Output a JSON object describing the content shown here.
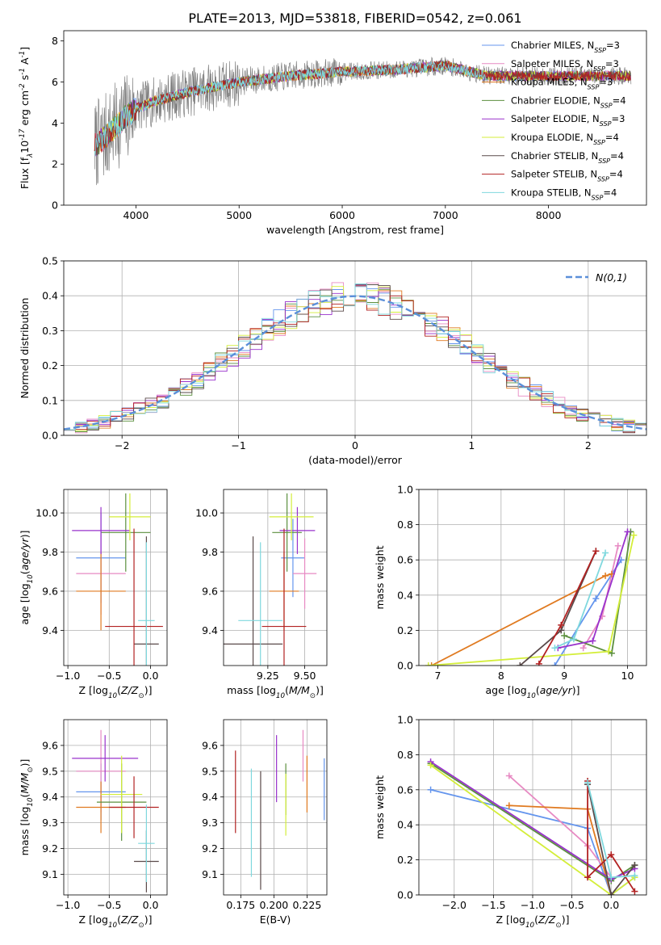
{
  "figure_title": "PLATE=2013, MJD=53818, FIBERID=0542, z=0.061",
  "chart_data": [
    {
      "type": "line",
      "panel": "spectrum",
      "xlabel": "wavelength [Angstrom, rest frame]",
      "ylabel": "Flux [f$_\\lambda$10$^{-17}$ erg cm$^{-2}$ s$^{-1}$ A$^{-1}$]",
      "xlim": [
        3300,
        8950
      ],
      "ylim": [
        0,
        8.5
      ],
      "xticks": [
        4000,
        5000,
        6000,
        7000,
        8000
      ],
      "yticks": [
        0,
        2,
        4,
        6,
        8
      ],
      "grid": false,
      "legend": "right",
      "data_color": "#808080",
      "continuum": {
        "x": [
          3600,
          3700,
          3800,
          3900,
          4000,
          4200,
          4500,
          5000,
          5500,
          6000,
          6500,
          7000,
          7400
        ],
        "y": [
          2.9,
          3.3,
          3.8,
          4.3,
          4.7,
          5.1,
          5.5,
          6.0,
          6.3,
          6.5,
          6.6,
          6.8,
          6.3
        ]
      },
      "series": [
        {
          "name": "Chabrier MILES, N$_{SSP}$=3",
          "color": "#6495ed"
        },
        {
          "name": "Salpeter MILES, N$_{SSP}$=3",
          "color": "#e78ac3"
        },
        {
          "name": "Kroupa MILES, N$_{SSP}$=3",
          "color": "#e07a20"
        },
        {
          "name": "Chabrier ELODIE, N$_{SSP}$=4",
          "color": "#5b8f3e"
        },
        {
          "name": "Salpeter ELODIE, N$_{SSP}$=3",
          "color": "#9932cc"
        },
        {
          "name": "Kroupa ELODIE, N$_{SSP}$=4",
          "color": "#d4ee3a"
        },
        {
          "name": "Chabrier STELIB, N$_{SSP}$=4",
          "color": "#5a4a4a"
        },
        {
          "name": "Salpeter STELIB, N$_{SSP}$=4",
          "color": "#b22222"
        },
        {
          "name": "Kroupa STELIB, N$_{SSP}$=4",
          "color": "#7fd8de"
        }
      ]
    },
    {
      "type": "line",
      "panel": "residuals",
      "xlabel": "(data-model)/error",
      "ylabel": "Normed distribution",
      "xlim": [
        -2.5,
        2.5
      ],
      "ylim": [
        0,
        0.5
      ],
      "xticks": [
        -2,
        -1,
        0,
        1,
        2
      ],
      "yticks": [
        0.0,
        0.1,
        0.2,
        0.3,
        0.4,
        0.5
      ],
      "grid": true,
      "legend": "top-right",
      "reference": {
        "name": "$\\mathcal{N}(0,1)$",
        "color": "#5b8fd9",
        "mean": 0,
        "sigma": 1
      },
      "bin_width": 0.1,
      "series_colors": [
        "#6495ed",
        "#e78ac3",
        "#e07a20",
        "#5b8f3e",
        "#9932cc",
        "#d4ee3a",
        "#5a4a4a",
        "#b22222",
        "#7fd8de"
      ]
    },
    {
      "type": "scatter",
      "panel": "age-vs-Z",
      "xlabel": "Z [log$_{10}$($Z/Z_\\odot$)]",
      "ylabel": "age  [log$_{10}$($age/yr$)]",
      "xlim": [
        -1.05,
        0.2
      ],
      "ylim": [
        9.22,
        10.12
      ],
      "xticks": [
        -1.0,
        -0.5,
        0.0
      ],
      "yticks": [
        9.4,
        9.6,
        9.8,
        10.0
      ],
      "grid": true,
      "points": [
        {
          "color": "#6495ed",
          "x": -0.6,
          "y": 9.77,
          "xerr": 0.3,
          "yerr": 0.23
        },
        {
          "color": "#e78ac3",
          "x": -0.6,
          "y": 9.69,
          "xerr": 0.3,
          "yerr": 0.21
        },
        {
          "color": "#e07a20",
          "x": -0.6,
          "y": 9.6,
          "xerr": 0.3,
          "yerr": 0.2
        },
        {
          "color": "#5b8f3e",
          "x": -0.3,
          "y": 9.9,
          "xerr": 0.3,
          "yerr": 0.2
        },
        {
          "color": "#9932cc",
          "x": -0.6,
          "y": 9.91,
          "xerr": 0.35,
          "yerr": 0.12
        },
        {
          "color": "#d4ee3a",
          "x": -0.25,
          "y": 9.98,
          "xerr": 0.25,
          "yerr": 0.12
        },
        {
          "color": "#5a4a4a",
          "x": -0.05,
          "y": 9.33,
          "xerr": 0.15,
          "yerr": 0.55
        },
        {
          "color": "#b22222",
          "x": -0.2,
          "y": 9.42,
          "xerr": 0.35,
          "yerr": 0.5
        },
        {
          "color": "#7fd8de",
          "x": -0.05,
          "y": 9.45,
          "xerr": 0.1,
          "yerr": 0.4
        }
      ]
    },
    {
      "type": "scatter",
      "panel": "age-vs-mass",
      "xlabel": "mass [log$_{10}$($M/M_\\odot$)]",
      "ylabel": "",
      "xlim": [
        8.95,
        9.65
      ],
      "ylim": [
        9.22,
        10.12
      ],
      "xticks": [
        9.25,
        9.5
      ],
      "yticks": [
        9.4,
        9.6,
        9.8,
        10.0
      ],
      "grid": true,
      "points": [
        {
          "color": "#6495ed",
          "x": 9.42,
          "y": 9.77,
          "xerr": 0.08,
          "yerr": 0.2
        },
        {
          "color": "#e78ac3",
          "x": 9.5,
          "y": 9.69,
          "xerr": 0.08,
          "yerr": 0.18
        },
        {
          "color": "#e07a20",
          "x": 9.36,
          "y": 9.6,
          "xerr": 0.1,
          "yerr": 0.2
        },
        {
          "color": "#5b8f3e",
          "x": 9.38,
          "y": 9.9,
          "xerr": 0.1,
          "yerr": 0.2
        },
        {
          "color": "#9932cc",
          "x": 9.45,
          "y": 9.91,
          "xerr": 0.12,
          "yerr": 0.12
        },
        {
          "color": "#d4ee3a",
          "x": 9.41,
          "y": 9.98,
          "xerr": 0.15,
          "yerr": 0.12
        },
        {
          "color": "#5a4a4a",
          "x": 9.15,
          "y": 9.33,
          "xerr": 0.2,
          "yerr": 0.55
        },
        {
          "color": "#b22222",
          "x": 9.36,
          "y": 9.42,
          "xerr": 0.15,
          "yerr": 0.5
        },
        {
          "color": "#7fd8de",
          "x": 9.2,
          "y": 9.45,
          "xerr": 0.15,
          "yerr": 0.4
        }
      ]
    },
    {
      "type": "line",
      "panel": "mass-weight-vs-age",
      "xlabel": "age  [log$_{10}$($age/yr$)]",
      "ylabel": "mass weight",
      "xlim": [
        6.7,
        10.3
      ],
      "ylim": [
        0,
        1.0
      ],
      "xticks": [
        7,
        8,
        9,
        10
      ],
      "yticks": [
        0.0,
        0.2,
        0.4,
        0.6,
        0.8,
        1.0
      ],
      "grid": true,
      "series": [
        {
          "color": "#6495ed",
          "x": [
            8.85,
            9.5,
            9.9
          ],
          "y": [
            0.0,
            0.38,
            0.6
          ]
        },
        {
          "color": "#e78ac3",
          "x": [
            9.3,
            9.6,
            9.85
          ],
          "y": [
            0.1,
            0.28,
            0.68
          ]
        },
        {
          "color": "#e07a20",
          "x": [
            6.9,
            9.65,
            9.75
          ],
          "y": [
            0.0,
            0.51,
            0.52
          ]
        },
        {
          "color": "#5b8f3e",
          "x": [
            9.0,
            9.75,
            10.05
          ],
          "y": [
            0.17,
            0.07,
            0.76
          ]
        },
        {
          "color": "#9932cc",
          "x": [
            8.9,
            9.45,
            10.0
          ],
          "y": [
            0.1,
            0.14,
            0.76
          ]
        },
        {
          "color": "#d4ee3a",
          "x": [
            6.85,
            9.7,
            10.1
          ],
          "y": [
            0.0,
            0.08,
            0.74
          ]
        },
        {
          "color": "#5a4a4a",
          "x": [
            8.3,
            8.95,
            9.5
          ],
          "y": [
            0.0,
            0.2,
            0.65
          ]
        },
        {
          "color": "#b22222",
          "x": [
            8.6,
            8.95,
            9.5
          ],
          "y": [
            0.01,
            0.23,
            0.65
          ]
        },
        {
          "color": "#7fd8de",
          "x": [
            8.85,
            9.15,
            9.65
          ],
          "y": [
            0.1,
            0.15,
            0.64
          ]
        }
      ]
    },
    {
      "type": "scatter",
      "panel": "mass-vs-Z",
      "xlabel": "Z [log$_{10}$($Z/Z_\\odot$)]",
      "ylabel": "mass [log$_{10}$($M/M_\\odot$)]",
      "xlim": [
        -1.05,
        0.2
      ],
      "ylim": [
        9.02,
        9.7
      ],
      "xticks": [
        -1.0,
        -0.5,
        0.0
      ],
      "yticks": [
        9.1,
        9.2,
        9.3,
        9.4,
        9.5,
        9.6
      ],
      "grid": true,
      "points": [
        {
          "color": "#6495ed",
          "x": -0.6,
          "y": 9.42,
          "xerr": 0.3,
          "yerr": 0.11
        },
        {
          "color": "#e78ac3",
          "x": -0.6,
          "y": 9.5,
          "xerr": 0.3,
          "yerr": 0.16
        },
        {
          "color": "#e07a20",
          "x": -0.6,
          "y": 9.36,
          "xerr": 0.3,
          "yerr": 0.1
        },
        {
          "color": "#5b8f3e",
          "x": -0.35,
          "y": 9.38,
          "xerr": 0.3,
          "yerr": 0.15
        },
        {
          "color": "#9932cc",
          "x": -0.55,
          "y": 9.55,
          "xerr": 0.4,
          "yerr": 0.09
        },
        {
          "color": "#d4ee3a",
          "x": -0.35,
          "y": 9.41,
          "xerr": 0.25,
          "yerr": 0.15
        },
        {
          "color": "#5a4a4a",
          "x": -0.05,
          "y": 9.15,
          "xerr": 0.15,
          "yerr": 0.12
        },
        {
          "color": "#b22222",
          "x": -0.2,
          "y": 9.36,
          "xerr": 0.3,
          "yerr": 0.12
        },
        {
          "color": "#7fd8de",
          "x": -0.05,
          "y": 9.22,
          "xerr": 0.1,
          "yerr": 0.15
        }
      ]
    },
    {
      "type": "scatter",
      "panel": "mass-vs-ebv",
      "xlabel": "E(B-V)",
      "ylabel": "",
      "xlim": [
        0.162,
        0.24
      ],
      "ylim": [
        9.02,
        9.7
      ],
      "xticks": [
        0.175,
        0.2,
        0.225
      ],
      "yticks": [
        9.1,
        9.2,
        9.3,
        9.4,
        9.5,
        9.6
      ],
      "grid": true,
      "points": [
        {
          "color": "#6495ed",
          "x": 0.238,
          "y": 9.43,
          "xerr": 0.0,
          "yerr": 0.12
        },
        {
          "color": "#e78ac3",
          "x": 0.222,
          "y": 9.56,
          "xerr": 0.0,
          "yerr": 0.1
        },
        {
          "color": "#e07a20",
          "x": 0.225,
          "y": 9.45,
          "xerr": 0.0,
          "yerr": 0.11
        },
        {
          "color": "#5b8f3e",
          "x": 0.209,
          "y": 9.43,
          "xerr": 0.0,
          "yerr": 0.1
        },
        {
          "color": "#9932cc",
          "x": 0.202,
          "y": 9.51,
          "xerr": 0.0,
          "yerr": 0.13
        },
        {
          "color": "#d4ee3a",
          "x": 0.209,
          "y": 9.37,
          "xerr": 0.0,
          "yerr": 0.12
        },
        {
          "color": "#5a4a4a",
          "x": 0.19,
          "y": 9.27,
          "xerr": 0.0,
          "yerr": 0.23
        },
        {
          "color": "#b22222",
          "x": 0.171,
          "y": 9.42,
          "xerr": 0.0,
          "yerr": 0.16
        },
        {
          "color": "#7fd8de",
          "x": 0.183,
          "y": 9.3,
          "xerr": 0.0,
          "yerr": 0.21
        }
      ]
    },
    {
      "type": "line",
      "panel": "mass-weight-vs-Z",
      "xlabel": "Z [log$_{10}$($Z/Z_\\odot$)]",
      "ylabel": "mass weight",
      "xlim": [
        -2.45,
        0.45
      ],
      "ylim": [
        0,
        1.0
      ],
      "xticks": [
        -2.0,
        -1.5,
        -1.0,
        -0.5,
        0.0
      ],
      "yticks": [
        0.0,
        0.2,
        0.4,
        0.6,
        0.8,
        1.0
      ],
      "grid": true,
      "series": [
        {
          "color": "#6495ed",
          "x": [
            -2.3,
            -0.3,
            0.0,
            0.3
          ],
          "y": [
            0.6,
            0.38,
            0.0,
            0.1
          ]
        },
        {
          "color": "#e78ac3",
          "x": [
            -1.3,
            -0.3,
            0.0
          ],
          "y": [
            0.68,
            0.28,
            0.1
          ]
        },
        {
          "color": "#e07a20",
          "x": [
            -1.3,
            -0.3,
            0.0
          ],
          "y": [
            0.51,
            0.49,
            0.0
          ]
        },
        {
          "color": "#5b8f3e",
          "x": [
            -2.3,
            0.0,
            0.3
          ],
          "y": [
            0.75,
            0.08,
            0.17
          ]
        },
        {
          "color": "#9932cc",
          "x": [
            -2.3,
            0.0,
            0.3
          ],
          "y": [
            0.76,
            0.09,
            0.15
          ]
        },
        {
          "color": "#d4ee3a",
          "x": [
            -2.3,
            0.0,
            0.3
          ],
          "y": [
            0.74,
            0.0,
            0.1
          ]
        },
        {
          "color": "#5a4a4a",
          "x": [
            -0.3,
            0.0,
            0.3
          ],
          "y": [
            0.63,
            0.0,
            0.17
          ]
        },
        {
          "color": "#b22222",
          "x": [
            -0.3,
            -0.3,
            0.0,
            0.3
          ],
          "y": [
            0.65,
            0.1,
            0.23,
            0.02
          ]
        },
        {
          "color": "#7fd8de",
          "x": [
            -0.3,
            0.0,
            0.3
          ],
          "y": [
            0.64,
            0.1,
            0.11
          ]
        }
      ]
    }
  ]
}
